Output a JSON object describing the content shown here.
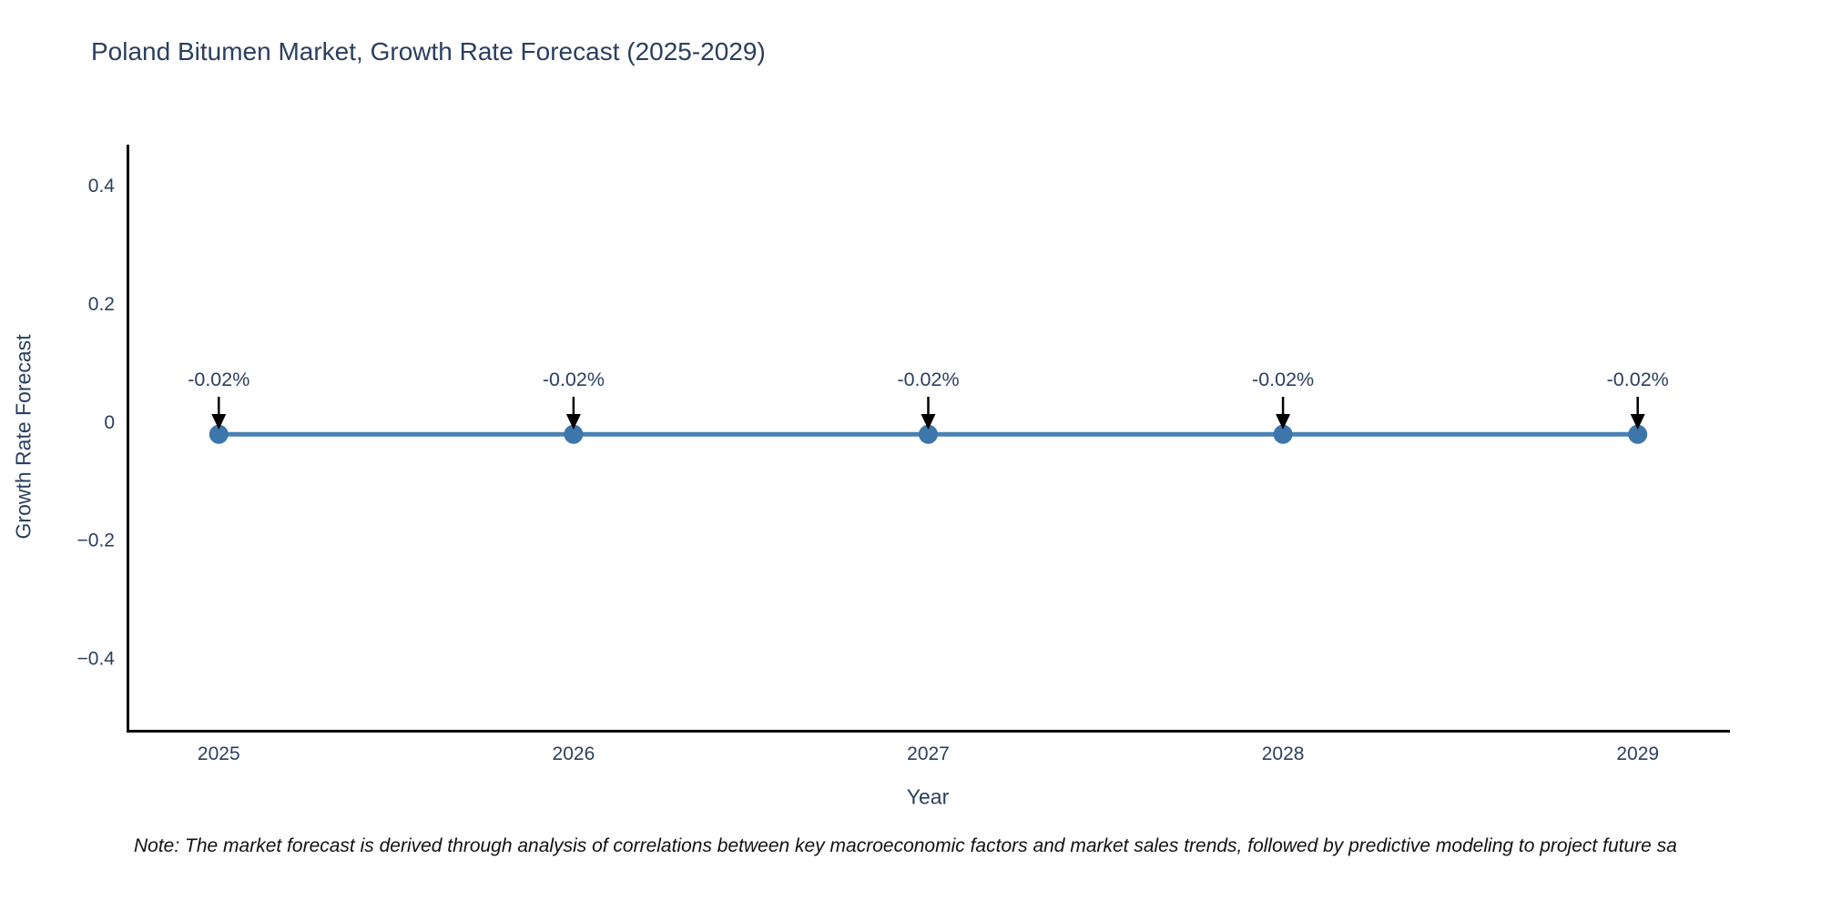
{
  "chart_data": {
    "type": "line",
    "title": "Poland Bitumen Market, Growth Rate Forecast (2025-2029)",
    "xlabel": "Year",
    "ylabel": "Growth Rate Forecast",
    "x": [
      2025,
      2026,
      2027,
      2028,
      2029
    ],
    "values": [
      -0.02,
      -0.02,
      -0.02,
      -0.02,
      -0.02
    ],
    "point_labels": [
      "-0.02%",
      "-0.02%",
      "-0.02%",
      "-0.02%",
      "-0.02%"
    ],
    "xticks": [
      "2025",
      "2026",
      "2027",
      "2028",
      "2029"
    ],
    "yticks": [
      0.4,
      0.2,
      0,
      -0.2,
      -0.4
    ],
    "ytick_labels": [
      "0.4",
      "0.2",
      "0",
      "−0.2",
      "−0.4"
    ],
    "xlim": [
      2024.74,
      2029.26
    ],
    "ylim": [
      -0.52,
      0.47
    ],
    "grid": false,
    "legend": false,
    "note": "Note: The market forecast is derived through analysis of correlations between key macroeconomic factors and market sales trends, followed by predictive modeling to project future sa",
    "colors": {
      "line": "#4a81b4",
      "marker": "#3d76ab",
      "axis_text": "#2a3f5f",
      "spine": "#000000",
      "arrow": "#000000",
      "annotation_text": "#2a3f5f",
      "note_text": "#111111"
    }
  }
}
